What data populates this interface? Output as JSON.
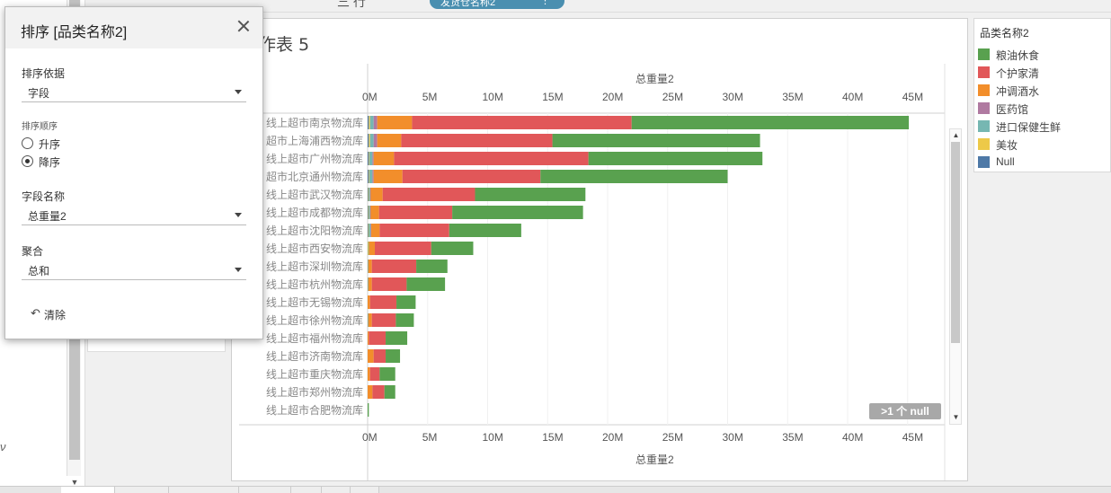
{
  "top": {
    "pill_label": "发货仓名称2",
    "pill_menu": "⋮",
    "hint": "三 行"
  },
  "sheet": {
    "title": "作表 5"
  },
  "colors": {
    "粮油休食": "#59a14f",
    "个护家清": "#e15759",
    "冲调酒水": "#f28e2b",
    "医药馆": "#b07aa1",
    "进口保健生鲜": "#76b7b2",
    "美妆": "#edc948",
    "Null": "#4e79a7"
  },
  "legend": {
    "title": "品类名称2",
    "items": [
      {
        "label": "粮油休食",
        "color": "#59a14f"
      },
      {
        "label": "个护家清",
        "color": "#e15759"
      },
      {
        "label": "冲调酒水",
        "color": "#f28e2b"
      },
      {
        "label": "医药馆",
        "color": "#b07aa1"
      },
      {
        "label": "进口保健生鲜",
        "color": "#76b7b2"
      },
      {
        "label": "美妆",
        "color": "#edc948"
      },
      {
        "label": "Null",
        "color": "#4e79a7"
      }
    ]
  },
  "null_badge": ">1 个 null",
  "sort_dialog": {
    "title": "排序 [品类名称2]",
    "sort_by_label": "排序依据",
    "sort_by_value": "字段",
    "order_label": "排序顺序",
    "ascending": "升序",
    "descending": "降序",
    "selected_order": "descending",
    "field_label": "字段名称",
    "field_value": "总重量2",
    "agg_label": "聚合",
    "agg_value": "总和",
    "clear_label": "清除",
    "clear_icon": "undo-icon"
  },
  "chart_data": {
    "type": "bar",
    "orientation": "horizontal",
    "stacked": true,
    "xlabel": "总重量2",
    "xlim": [
      0,
      46000000
    ],
    "xticks": [
      "0M",
      "5M",
      "10M",
      "15M",
      "20M",
      "25M",
      "30M",
      "35M",
      "40M",
      "45M"
    ],
    "xtick_values": [
      0,
      5,
      10,
      15,
      20,
      25,
      30,
      35,
      40,
      45
    ],
    "categories": [
      "线上超市南京物流库",
      "超市上海浦西物流库",
      "线上超市广州物流库",
      "超市北京通州物流库",
      "线上超市武汉物流库",
      "线上超市成都物流库",
      "线上超市沈阳物流库",
      "线上超市西安物流库",
      "线上超市深圳物流库",
      "线上超市杭州物流库",
      "线上超市无锡物流库",
      "线上超市徐州物流库",
      "线上超市福州物流库",
      "线上超市济南物流库",
      "线上超市重庆物流库",
      "线上超市郑州物流库",
      "线上超市合肥物流库"
    ],
    "series": [
      {
        "name": "Null",
        "values": [
          0.1,
          0.1,
          0.1,
          0.1,
          0.05,
          0.05,
          0.05,
          0,
          0,
          0,
          0,
          0,
          0,
          0,
          0,
          0,
          0
        ]
      },
      {
        "name": "美妆",
        "values": [
          0.1,
          0.1,
          0.05,
          0.05,
          0.05,
          0.05,
          0.05,
          0.05,
          0,
          0,
          0,
          0,
          0,
          0,
          0,
          0,
          0
        ]
      },
      {
        "name": "进口保健生鲜",
        "values": [
          0.3,
          0.3,
          0.25,
          0.25,
          0.1,
          0.1,
          0.15,
          0.05,
          0.05,
          0.05,
          0,
          0.05,
          0,
          0,
          0,
          0,
          0
        ]
      },
      {
        "name": "医药馆",
        "values": [
          0.3,
          0.3,
          0.1,
          0.1,
          0.05,
          0.05,
          0.05,
          0,
          0,
          0,
          0,
          0,
          0,
          0,
          0,
          0,
          0
        ]
      },
      {
        "name": "冲调酒水",
        "values": [
          2.9,
          2.0,
          1.7,
          2.4,
          1.0,
          0.7,
          0.7,
          0.5,
          0.3,
          0.3,
          0.2,
          0.3,
          0.1,
          0.5,
          0.2,
          0.4,
          0
        ]
      },
      {
        "name": "个护家清",
        "values": [
          18.3,
          12.6,
          16.2,
          11.5,
          7.7,
          6.1,
          5.8,
          4.7,
          3.7,
          2.9,
          2.2,
          2.0,
          1.4,
          1.0,
          0.8,
          1.0,
          0
        ]
      },
      {
        "name": "粮油休食",
        "values": [
          23.1,
          17.3,
          14.5,
          15.6,
          9.2,
          10.9,
          6.0,
          3.5,
          2.6,
          3.2,
          1.6,
          1.5,
          1.8,
          1.2,
          1.3,
          0.9,
          0.1
        ]
      }
    ],
    "units": "M"
  }
}
